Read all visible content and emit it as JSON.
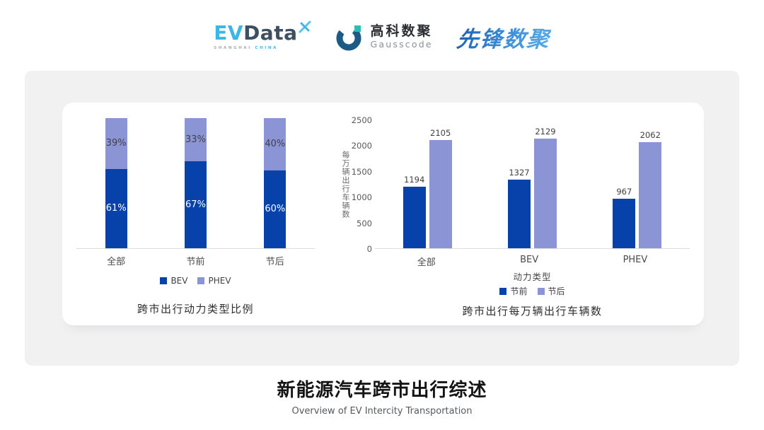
{
  "header": {
    "evdata": {
      "ev": "EV",
      "data": "Data",
      "sub1": "SHANGHAI",
      "sub2": "CHINA"
    },
    "gausscode": {
      "cn": "高科数聚",
      "en": "Gausscode"
    },
    "xianfeng": "先锋数聚"
  },
  "colors": {
    "series_dark_blue": "#0642a9",
    "series_light_blue": "#8b95d5",
    "axis_line": "#dcdcdc",
    "evdata_cyan": "#3db6e5",
    "evdata_slate": "#3e4f61",
    "gauss_navy": "#1d5b87",
    "gauss_teal": "#2abdb4",
    "xianfeng_blue": "#2f7cc9"
  },
  "chart_data": [
    {
      "type": "bar",
      "subtype": "stacked-100-percent",
      "title": "跨市出行动力类型比例",
      "categories": [
        "全部",
        "节前",
        "节后"
      ],
      "series": [
        {
          "name": "BEV",
          "color": "#0642a9",
          "values": [
            61,
            67,
            60
          ],
          "label_color": "#ffffff"
        },
        {
          "name": "PHEV",
          "color": "#8b95d5",
          "values": [
            39,
            33,
            40
          ],
          "label_color": "#3f3f46"
        }
      ],
      "value_suffix": "%",
      "ylim": [
        0,
        100
      ],
      "grid": false,
      "legend_position": "bottom"
    },
    {
      "type": "bar",
      "subtype": "grouped",
      "title": "跨市出行每万辆出行车辆数",
      "categories": [
        "全部",
        "BEV",
        "PHEV"
      ],
      "xlabel": "动力类型",
      "ylabel": "每万辆出行车辆数",
      "ylim": [
        0,
        2500
      ],
      "yticks": [
        0,
        500,
        1000,
        1500,
        2000,
        2500
      ],
      "series": [
        {
          "name": "节前",
          "color": "#0642a9",
          "values": [
            1194,
            1327,
            967
          ]
        },
        {
          "name": "节后",
          "color": "#8b95d5",
          "values": [
            2105,
            2129,
            2062
          ]
        }
      ],
      "grid": false,
      "legend_position": "bottom"
    }
  ],
  "footer": {
    "title": "新能源汽车跨市出行综述",
    "subtitle": "Overview of EV Intercity Transportation"
  }
}
